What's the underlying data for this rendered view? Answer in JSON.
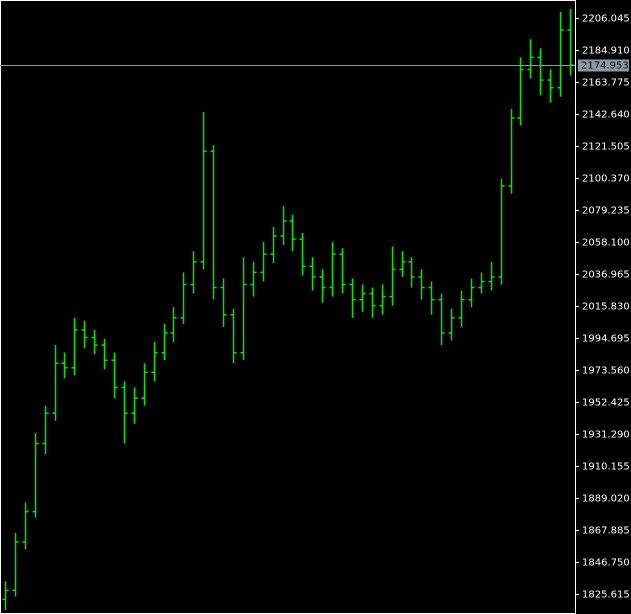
{
  "chart_data": {
    "type": "ohlc",
    "color": "#00e600",
    "background": "#000000",
    "ylim": [
      1812.4,
      2217.9
    ],
    "yticks": [
      {
        "value": 2206.045,
        "label": "2206.045"
      },
      {
        "value": 2184.91,
        "label": "2184.910"
      },
      {
        "value": 2163.775,
        "label": "2163.775"
      },
      {
        "value": 2142.64,
        "label": "2142.640"
      },
      {
        "value": 2121.505,
        "label": "2121.505"
      },
      {
        "value": 2100.37,
        "label": "2100.370"
      },
      {
        "value": 2079.235,
        "label": "2079.235"
      },
      {
        "value": 2058.1,
        "label": "2058.100"
      },
      {
        "value": 2036.965,
        "label": "2036.965"
      },
      {
        "value": 2015.83,
        "label": "2015.830"
      },
      {
        "value": 1994.695,
        "label": "1994.695"
      },
      {
        "value": 1973.56,
        "label": "1973.560"
      },
      {
        "value": 1952.425,
        "label": "1952.425"
      },
      {
        "value": 1931.29,
        "label": "1931.290"
      },
      {
        "value": 1910.155,
        "label": "1910.155"
      },
      {
        "value": 1889.02,
        "label": "1889.020"
      },
      {
        "value": 1867.885,
        "label": "1867.885"
      },
      {
        "value": 1846.75,
        "label": "1846.750"
      },
      {
        "value": 1825.615,
        "label": "1825.615"
      }
    ],
    "price_line": {
      "value": 2174.953,
      "label": "2174.953"
    },
    "open": [
      1822,
      1828,
      1860,
      1880,
      1925,
      1945,
      1978,
      1975,
      2000,
      1995,
      1990,
      1980,
      1962,
      1945,
      1955,
      1972,
      1985,
      1998,
      2008,
      2030,
      2045,
      2118,
      2028,
      2010,
      1985,
      2030,
      2038,
      2050,
      2062,
      2072,
      2060,
      2042,
      2035,
      2028,
      2050,
      2030,
      2020,
      2024,
      2016,
      2022,
      2040,
      2045,
      2035,
      2028,
      2020,
      1998,
      2008,
      2020,
      2028,
      2032,
      2035,
      2095,
      2140,
      2172,
      2180,
      2165,
      2160,
      2198
    ],
    "high": [
      1834,
      1866,
      1886,
      1932,
      1950,
      1990,
      1985,
      2008,
      2006,
      2000,
      1994,
      1985,
      1966,
      1962,
      1978,
      1992,
      2004,
      2015,
      2038,
      2052,
      2144,
      2122,
      2034,
      2014,
      2048,
      2045,
      2058,
      2068,
      2082,
      2076,
      2064,
      2048,
      2040,
      2058,
      2054,
      2034,
      2030,
      2028,
      2030,
      2055,
      2052,
      2048,
      2040,
      2032,
      2024,
      2014,
      2026,
      2034,
      2038,
      2045,
      2100,
      2146,
      2180,
      2192,
      2186,
      2172,
      2210,
      2212
    ],
    "low": [
      1815,
      1824,
      1855,
      1876,
      1918,
      1940,
      1968,
      1970,
      1988,
      1984,
      1974,
      1955,
      1925,
      1938,
      1950,
      1966,
      1980,
      1992,
      2004,
      2024,
      2040,
      2020,
      2002,
      1978,
      1980,
      2022,
      2032,
      2044,
      2056,
      2052,
      2036,
      2026,
      2018,
      2022,
      2024,
      2008,
      2012,
      2008,
      2010,
      2016,
      2035,
      2028,
      2020,
      2010,
      1990,
      1993,
      2002,
      2015,
      2024,
      2026,
      2030,
      2090,
      2135,
      2166,
      2155,
      2150,
      2154,
      2168
    ],
    "close": [
      1828,
      1860,
      1880,
      1925,
      1945,
      1978,
      1975,
      2000,
      1995,
      1990,
      1980,
      1962,
      1945,
      1955,
      1972,
      1985,
      1998,
      2008,
      2030,
      2045,
      2118,
      2028,
      2010,
      1985,
      2030,
      2038,
      2050,
      2062,
      2072,
      2060,
      2042,
      2035,
      2028,
      2050,
      2030,
      2020,
      2024,
      2016,
      2022,
      2040,
      2045,
      2035,
      2028,
      2020,
      1998,
      2008,
      2020,
      2028,
      2032,
      2035,
      2095,
      2140,
      2172,
      2180,
      2165,
      2160,
      2198,
      2175
    ]
  }
}
